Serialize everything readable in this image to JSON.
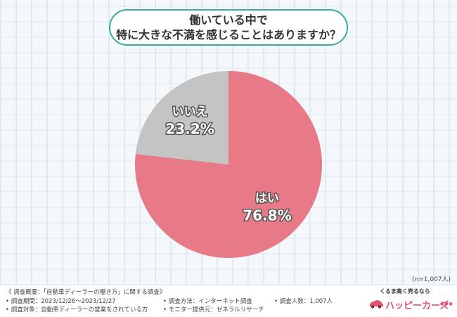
{
  "title": {
    "line1": "働いている中で",
    "line2": "特に大きな不満を感じることはありますか？"
  },
  "chart_data": {
    "type": "pie",
    "slices": [
      {
        "label": "はい",
        "value": 76.8,
        "display": "76.8%",
        "color": "#e87a87"
      },
      {
        "label": "いいえ",
        "value": 23.2,
        "display": "23.2%",
        "color": "#c4c4c4"
      }
    ],
    "start": "top, clockwise"
  },
  "sample_size": "(n=1,007人)",
  "footer": {
    "overview": "《 調査概要：「自動車ディーラーの働き方」に関する調査》",
    "period": "• 調査期間：2023/12/26～2023/12/27",
    "target": "• 調査対象：自動車ディーラーの営業をされている方",
    "method": "• 調査方法：インターネット調査",
    "provider": "• モニター提供元：ゼネラルリサーチ",
    "count": "• 調査人数：1,007人"
  },
  "logo": {
    "tagline": "くるま高く売るなら",
    "name": "ハッピーカーズ",
    "dots": "●●●",
    "icon": "car-icon"
  }
}
